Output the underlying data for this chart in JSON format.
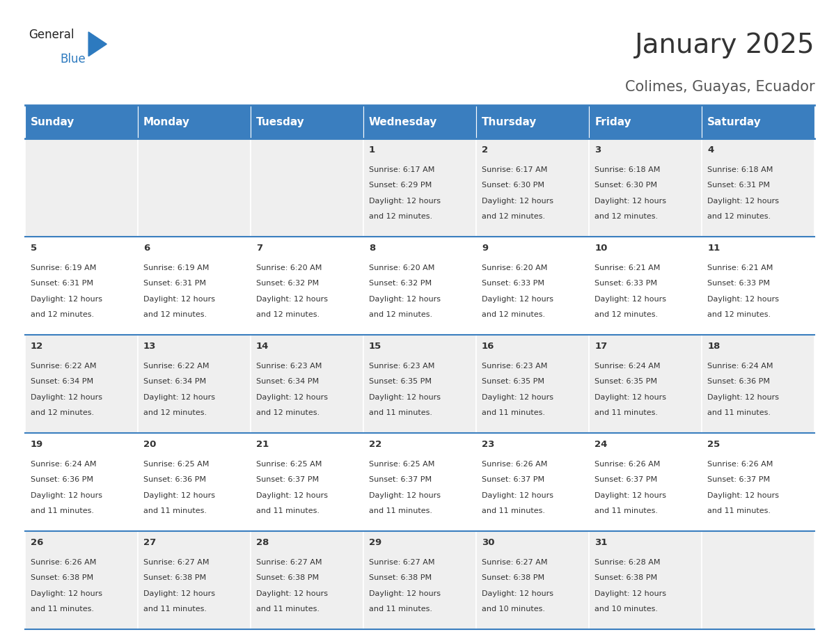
{
  "title": "January 2025",
  "subtitle": "Colimes, Guayas, Ecuador",
  "header_bg": "#3a7ebf",
  "header_text_color": "#ffffff",
  "weekdays": [
    "Sunday",
    "Monday",
    "Tuesday",
    "Wednesday",
    "Thursday",
    "Friday",
    "Saturday"
  ],
  "row_bg_odd": "#efefef",
  "row_bg_even": "#ffffff",
  "cell_border_color": "#3a7ebf",
  "day_number_color": "#333333",
  "day_info_color": "#333333",
  "title_color": "#333333",
  "subtitle_color": "#555555",
  "logo_general_color": "#222222",
  "logo_blue_color": "#2d7abf",
  "background_color": "#ffffff",
  "calendar": [
    [
      null,
      null,
      null,
      {
        "day": 1,
        "sunrise": "6:17 AM",
        "sunset": "6:29 PM",
        "daylight": "12 hours and 12 minutes"
      },
      {
        "day": 2,
        "sunrise": "6:17 AM",
        "sunset": "6:30 PM",
        "daylight": "12 hours and 12 minutes"
      },
      {
        "day": 3,
        "sunrise": "6:18 AM",
        "sunset": "6:30 PM",
        "daylight": "12 hours and 12 minutes"
      },
      {
        "day": 4,
        "sunrise": "6:18 AM",
        "sunset": "6:31 PM",
        "daylight": "12 hours and 12 minutes"
      }
    ],
    [
      {
        "day": 5,
        "sunrise": "6:19 AM",
        "sunset": "6:31 PM",
        "daylight": "12 hours and 12 minutes"
      },
      {
        "day": 6,
        "sunrise": "6:19 AM",
        "sunset": "6:31 PM",
        "daylight": "12 hours and 12 minutes"
      },
      {
        "day": 7,
        "sunrise": "6:20 AM",
        "sunset": "6:32 PM",
        "daylight": "12 hours and 12 minutes"
      },
      {
        "day": 8,
        "sunrise": "6:20 AM",
        "sunset": "6:32 PM",
        "daylight": "12 hours and 12 minutes"
      },
      {
        "day": 9,
        "sunrise": "6:20 AM",
        "sunset": "6:33 PM",
        "daylight": "12 hours and 12 minutes"
      },
      {
        "day": 10,
        "sunrise": "6:21 AM",
        "sunset": "6:33 PM",
        "daylight": "12 hours and 12 minutes"
      },
      {
        "day": 11,
        "sunrise": "6:21 AM",
        "sunset": "6:33 PM",
        "daylight": "12 hours and 12 minutes"
      }
    ],
    [
      {
        "day": 12,
        "sunrise": "6:22 AM",
        "sunset": "6:34 PM",
        "daylight": "12 hours and 12 minutes"
      },
      {
        "day": 13,
        "sunrise": "6:22 AM",
        "sunset": "6:34 PM",
        "daylight": "12 hours and 12 minutes"
      },
      {
        "day": 14,
        "sunrise": "6:23 AM",
        "sunset": "6:34 PM",
        "daylight": "12 hours and 12 minutes"
      },
      {
        "day": 15,
        "sunrise": "6:23 AM",
        "sunset": "6:35 PM",
        "daylight": "12 hours and 11 minutes"
      },
      {
        "day": 16,
        "sunrise": "6:23 AM",
        "sunset": "6:35 PM",
        "daylight": "12 hours and 11 minutes"
      },
      {
        "day": 17,
        "sunrise": "6:24 AM",
        "sunset": "6:35 PM",
        "daylight": "12 hours and 11 minutes"
      },
      {
        "day": 18,
        "sunrise": "6:24 AM",
        "sunset": "6:36 PM",
        "daylight": "12 hours and 11 minutes"
      }
    ],
    [
      {
        "day": 19,
        "sunrise": "6:24 AM",
        "sunset": "6:36 PM",
        "daylight": "12 hours and 11 minutes"
      },
      {
        "day": 20,
        "sunrise": "6:25 AM",
        "sunset": "6:36 PM",
        "daylight": "12 hours and 11 minutes"
      },
      {
        "day": 21,
        "sunrise": "6:25 AM",
        "sunset": "6:37 PM",
        "daylight": "12 hours and 11 minutes"
      },
      {
        "day": 22,
        "sunrise": "6:25 AM",
        "sunset": "6:37 PM",
        "daylight": "12 hours and 11 minutes"
      },
      {
        "day": 23,
        "sunrise": "6:26 AM",
        "sunset": "6:37 PM",
        "daylight": "12 hours and 11 minutes"
      },
      {
        "day": 24,
        "sunrise": "6:26 AM",
        "sunset": "6:37 PM",
        "daylight": "12 hours and 11 minutes"
      },
      {
        "day": 25,
        "sunrise": "6:26 AM",
        "sunset": "6:37 PM",
        "daylight": "12 hours and 11 minutes"
      }
    ],
    [
      {
        "day": 26,
        "sunrise": "6:26 AM",
        "sunset": "6:38 PM",
        "daylight": "12 hours and 11 minutes"
      },
      {
        "day": 27,
        "sunrise": "6:27 AM",
        "sunset": "6:38 PM",
        "daylight": "12 hours and 11 minutes"
      },
      {
        "day": 28,
        "sunrise": "6:27 AM",
        "sunset": "6:38 PM",
        "daylight": "12 hours and 11 minutes"
      },
      {
        "day": 29,
        "sunrise": "6:27 AM",
        "sunset": "6:38 PM",
        "daylight": "12 hours and 11 minutes"
      },
      {
        "day": 30,
        "sunrise": "6:27 AM",
        "sunset": "6:38 PM",
        "daylight": "12 hours and 10 minutes"
      },
      {
        "day": 31,
        "sunrise": "6:28 AM",
        "sunset": "6:38 PM",
        "daylight": "12 hours and 10 minutes"
      },
      null
    ]
  ],
  "fig_width": 11.88,
  "fig_height": 9.18,
  "header_fontsize": 11,
  "day_number_fontsize": 9.5,
  "info_fontsize": 8,
  "title_fontsize": 28,
  "subtitle_fontsize": 15
}
